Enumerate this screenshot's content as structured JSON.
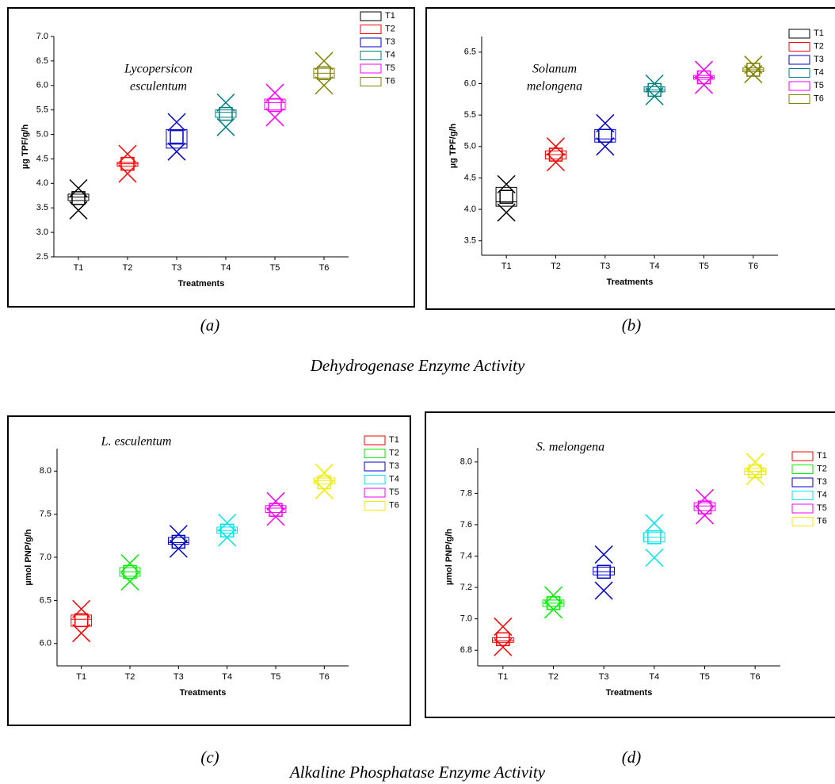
{
  "section_titles": [
    "Dehydrogenase Enzyme Activity",
    "Alkaline Phosphatase Enzyme Activity"
  ],
  "chart_data": [
    {
      "type": "box",
      "caption": "(a)",
      "annotation": [
        "Lycopersicon",
        "esculentum"
      ],
      "xlabel": "Treatments",
      "ylabel": "µg TPF/g/h",
      "categories": [
        "T1",
        "T2",
        "T3",
        "T4",
        "T5",
        "T6"
      ],
      "ylim": [
        2.5,
        7.0
      ],
      "yticks": [
        2.5,
        {
          "value": 3,
          "label": "3.0"
        },
        3.5,
        {
          "value": 4,
          "label": "4.0"
        },
        4.5,
        {
          "value": 5,
          "label": "5.0"
        },
        5.5,
        {
          "value": 6,
          "label": "6.0"
        },
        6.5,
        {
          "value": 7,
          "label": "7.0"
        }
      ],
      "series": [
        {
          "name": "T1",
          "color": "#000000",
          "q1": 3.65,
          "median": 3.72,
          "q3": 3.78,
          "mean": 3.7,
          "min": 3.45,
          "max": 3.9
        },
        {
          "name": "T2",
          "color": "#ff0000",
          "q1": 4.35,
          "median": 4.4,
          "q3": 4.43,
          "mean": 4.4,
          "min": 4.2,
          "max": 4.6
        },
        {
          "name": "T3",
          "color": "#0000cc",
          "q1": 4.72,
          "median": 4.8,
          "q3": 5.1,
          "mean": 4.95,
          "min": 4.65,
          "max": 5.25
        },
        {
          "name": "T4",
          "color": "#008080",
          "q1": 5.35,
          "median": 5.45,
          "q3": 5.5,
          "mean": 5.42,
          "min": 5.15,
          "max": 5.65
        },
        {
          "name": "T5",
          "color": "#ff00ff",
          "q1": 5.5,
          "median": 5.65,
          "q3": 5.72,
          "mean": 5.6,
          "min": 5.35,
          "max": 5.85
        },
        {
          "name": "T6",
          "color": "#808000",
          "q1": 6.15,
          "median": 6.25,
          "q3": 6.35,
          "mean": 6.25,
          "min": 6.0,
          "max": 6.5
        }
      ]
    },
    {
      "type": "box",
      "caption": "(b)",
      "annotation": [
        "Solanum",
        "melongena"
      ],
      "xlabel": "Treatments",
      "ylabel": "µg TPF/g/h",
      "categories": [
        "T1",
        "T2",
        "T3",
        "T4",
        "T5",
        "T6"
      ],
      "ylim": [
        3.27,
        6.75
      ],
      "yticks": [
        3.5,
        {
          "value": 4,
          "label": "4.0"
        },
        4.5,
        {
          "value": 5,
          "label": "5.0"
        },
        5.5,
        {
          "value": 6,
          "label": "6.0"
        },
        6.5
      ],
      "series": [
        {
          "name": "T1",
          "color": "#000000",
          "q1": 4.05,
          "median": 4.12,
          "q3": 4.35,
          "mean": 4.2,
          "min": 3.95,
          "max": 4.4
        },
        {
          "name": "T2",
          "color": "#ff0000",
          "q1": 4.8,
          "median": 4.87,
          "q3": 4.93,
          "mean": 4.87,
          "min": 4.75,
          "max": 5.0
        },
        {
          "name": "T3",
          "color": "#0000cc",
          "q1": 5.07,
          "median": 5.12,
          "q3": 5.27,
          "mean": 5.17,
          "min": 5.0,
          "max": 5.37
        },
        {
          "name": "T4",
          "color": "#008080",
          "q1": 5.87,
          "median": 5.9,
          "q3": 5.95,
          "mean": 5.9,
          "min": 5.8,
          "max": 6.0
        },
        {
          "name": "T5",
          "color": "#ff00ff",
          "q1": 6.07,
          "median": 6.1,
          "q3": 6.13,
          "mean": 6.1,
          "min": 5.98,
          "max": 6.22
        },
        {
          "name": "T6",
          "color": "#808000",
          "q1": 6.19,
          "median": 6.22,
          "q3": 6.25,
          "mean": 6.22,
          "min": 6.15,
          "max": 6.3
        }
      ]
    },
    {
      "type": "box",
      "caption": "(c)",
      "annotation": [
        "L. esculentum"
      ],
      "xlabel": "Treatments",
      "ylabel": "µmol PNP/g/h",
      "categories": [
        "T1",
        "T2",
        "T3",
        "T4",
        "T5",
        "T6"
      ],
      "ylim": [
        5.74,
        8.26
      ],
      "yticks": [
        {
          "value": 6,
          "label": "6.0"
        },
        6.5,
        {
          "value": 7,
          "label": "7.0"
        },
        7.5,
        {
          "value": 8,
          "label": "8.0"
        }
      ],
      "series": [
        {
          "name": "T1",
          "color": "#ff0000",
          "q1": 6.2,
          "median": 6.28,
          "q3": 6.33,
          "mean": 6.27,
          "min": 6.12,
          "max": 6.4
        },
        {
          "name": "T2",
          "color": "#00ee00",
          "q1": 6.78,
          "median": 6.83,
          "q3": 6.88,
          "mean": 6.83,
          "min": 6.72,
          "max": 6.93
        },
        {
          "name": "T3",
          "color": "#0000cc",
          "q1": 7.15,
          "median": 7.17,
          "q3": 7.23,
          "mean": 7.18,
          "min": 7.1,
          "max": 7.27
        },
        {
          "name": "T4",
          "color": "#00e5ee",
          "q1": 7.28,
          "median": 7.31,
          "q3": 7.35,
          "mean": 7.31,
          "min": 7.23,
          "max": 7.4
        },
        {
          "name": "T5",
          "color": "#ff00ff",
          "q1": 7.52,
          "median": 7.57,
          "q3": 7.6,
          "mean": 7.55,
          "min": 7.47,
          "max": 7.65
        },
        {
          "name": "T6",
          "color": "#eeee00",
          "q1": 7.85,
          "median": 7.89,
          "q3": 7.92,
          "mean": 7.87,
          "min": 7.78,
          "max": 7.98
        }
      ]
    },
    {
      "type": "box",
      "caption": "(d)",
      "annotation": [
        "S. melongena"
      ],
      "xlabel": "Treatments",
      "ylabel": "µmol  PNP/g/h",
      "categories": [
        "T1",
        "T2",
        "T3",
        "T4",
        "T5",
        "T6"
      ],
      "ylim": [
        6.7,
        8.09
      ],
      "yticks": [
        6.8,
        {
          "value": 7,
          "label": "7.0"
        },
        7.2,
        7.4,
        7.6,
        7.8,
        {
          "value": 8,
          "label": "8.0"
        }
      ],
      "series": [
        {
          "name": "T1",
          "color": "#ff0000",
          "q1": 6.85,
          "median": 6.86,
          "q3": 6.88,
          "mean": 6.87,
          "min": 6.82,
          "max": 6.95
        },
        {
          "name": "T2",
          "color": "#00ee00",
          "q1": 7.08,
          "median": 7.1,
          "q3": 7.12,
          "mean": 7.1,
          "min": 7.06,
          "max": 7.15
        },
        {
          "name": "T3",
          "color": "#0000cc",
          "q1": 7.28,
          "median": 7.3,
          "q3": 7.33,
          "mean": 7.3,
          "min": 7.18,
          "max": 7.41
        },
        {
          "name": "T4",
          "color": "#00e5ee",
          "q1": 7.49,
          "median": 7.52,
          "q3": 7.55,
          "mean": 7.52,
          "min": 7.39,
          "max": 7.61
        },
        {
          "name": "T5",
          "color": "#ff00ff",
          "q1": 7.69,
          "median": 7.72,
          "q3": 7.74,
          "mean": 7.71,
          "min": 7.66,
          "max": 7.77
        },
        {
          "name": "T6",
          "color": "#eeee00",
          "q1": 7.92,
          "median": 7.94,
          "q3": 7.96,
          "mean": 7.94,
          "min": 7.91,
          "max": 8.0
        }
      ]
    }
  ]
}
